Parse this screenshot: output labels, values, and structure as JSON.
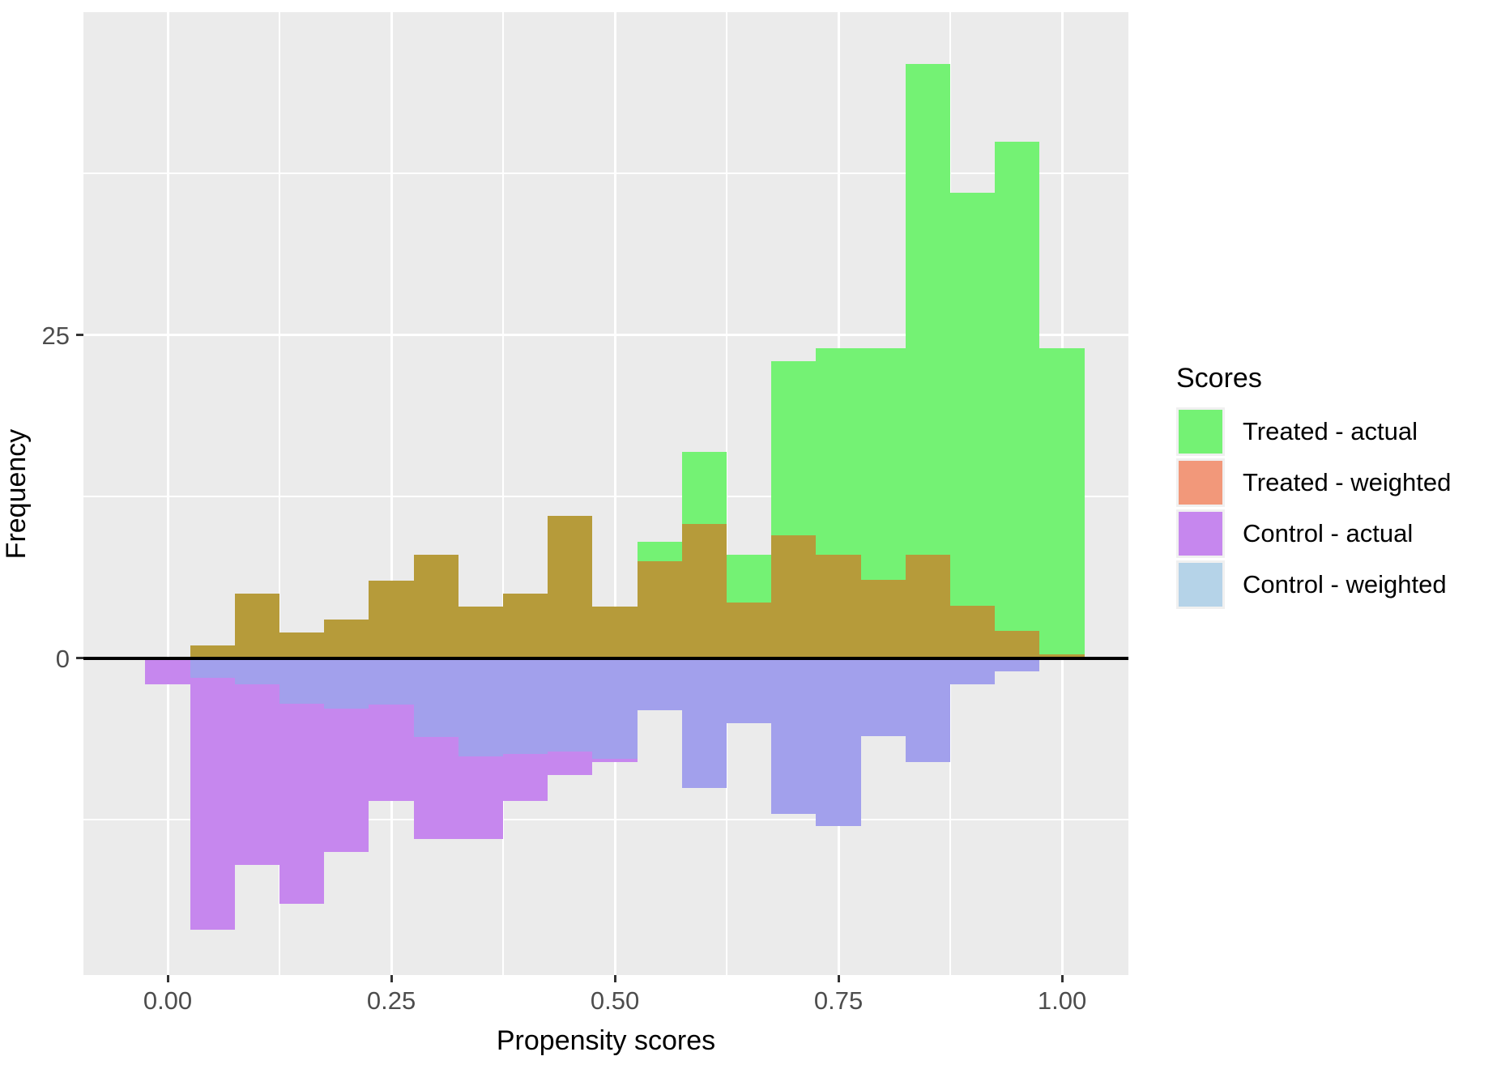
{
  "titles": {
    "x_axis": "Propensity scores",
    "y_axis": "Frequency"
  },
  "legend": {
    "title": "Scores",
    "items": [
      {
        "label": "Treated - actual",
        "color": "#74f274"
      },
      {
        "label": "Treated - weighted",
        "color": "#f2987a"
      },
      {
        "label": "Control - actual",
        "color": "#c687ee"
      },
      {
        "label": "Control - weighted",
        "color": "#b5d3e8"
      }
    ]
  },
  "colors": {
    "panel_background": "#ebebeb",
    "gridline": "#ffffff",
    "zero_line": "#000000",
    "tick_text": "#4d4d4d",
    "treated_actual": "#74f274",
    "treated_weighted": "#f2987a",
    "control_actual": "#c687ee",
    "control_weighted": "#b5d3e8",
    "treated_overlap_olive": "#b69b3a",
    "control_overlap_periwinkle": "#a2a0ec"
  },
  "chart_data": {
    "type": "bar",
    "subtype": "mirrored-histogram",
    "title": "",
    "xlabel": "Propensity scores",
    "ylabel": "Frequency",
    "bin_width": 0.05,
    "bin_centers": [
      0.0,
      0.05,
      0.1,
      0.15,
      0.2,
      0.25,
      0.3,
      0.35,
      0.4,
      0.45,
      0.5,
      0.55,
      0.6,
      0.65,
      0.7,
      0.75,
      0.8,
      0.85,
      0.9,
      0.95,
      1.0
    ],
    "series": [
      {
        "name": "Treated - actual",
        "direction": "up",
        "values": [
          0,
          1,
          5,
          2,
          3,
          6,
          8,
          4,
          5,
          11,
          4,
          9,
          16,
          8,
          23,
          24,
          24,
          46,
          36,
          40,
          24
        ]
      },
      {
        "name": "Treated - weighted",
        "direction": "up",
        "values": [
          0,
          1,
          5,
          2,
          3,
          6,
          8,
          4,
          5,
          11,
          4,
          7.5,
          10.4,
          4.3,
          9.5,
          8,
          6.1,
          8,
          4.1,
          2.1,
          0.3
        ]
      },
      {
        "name": "Control - actual",
        "direction": "down",
        "values": [
          2,
          21,
          16,
          19,
          15,
          11,
          14,
          14,
          11,
          9,
          8,
          4,
          10,
          5,
          12,
          13,
          6,
          8,
          2,
          1,
          0
        ]
      },
      {
        "name": "Control - weighted",
        "direction": "down",
        "values": [
          0,
          1.5,
          2,
          3.5,
          3.9,
          3.6,
          6.1,
          7.6,
          7.4,
          7.2,
          7.8,
          4,
          10,
          5,
          12,
          13,
          6,
          8,
          2,
          1,
          0
        ]
      }
    ],
    "x_ticks": [
      {
        "label": "0.00",
        "value": 0.0
      },
      {
        "label": "0.25",
        "value": 0.25
      },
      {
        "label": "0.50",
        "value": 0.5
      },
      {
        "label": "0.75",
        "value": 0.75
      },
      {
        "label": "1.00",
        "value": 1.0
      }
    ],
    "y_ticks": [
      {
        "label": "0",
        "value": 0
      },
      {
        "label": "25",
        "value": 25
      }
    ],
    "grid": {
      "x_major": [
        0.0,
        0.25,
        0.5,
        0.75,
        1.0
      ],
      "x_minor": [
        0.125,
        0.375,
        0.625,
        0.875
      ],
      "y_major": [
        0,
        25
      ],
      "y_minor": [
        -12.5,
        12.5,
        37.5
      ]
    },
    "x_range": [
      -0.0942,
      1.0742
    ],
    "y_range": [
      -24.5,
      50.0
    ],
    "legend_position": "right",
    "zero_line": true
  }
}
